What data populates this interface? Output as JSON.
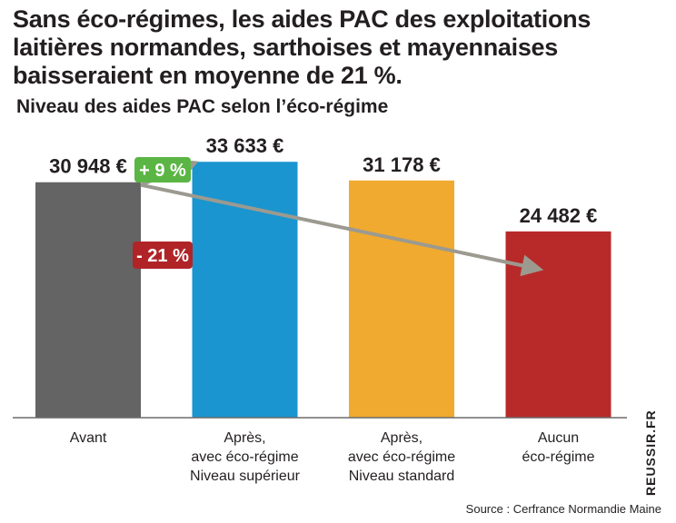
{
  "title_lines": [
    "Sans éco-régimes, les aides PAC des exploitations",
    "laitières normandes, sarthoises et mayennaises",
    "baisseraient en moyenne de 21 %."
  ],
  "source": "Source : Cerfrance Normandie Maine",
  "credit": "REUSSIR.FR",
  "chart_data": {
    "type": "bar",
    "title": "Niveau des aides PAC selon l’éco-régime",
    "categories": [
      [
        "Avant"
      ],
      [
        "Après,",
        "avec éco-régime",
        "Niveau supérieur"
      ],
      [
        "Après,",
        "avec éco-régime",
        "Niveau standard"
      ],
      [
        "Aucun",
        "éco-régime"
      ]
    ],
    "values": [
      30948,
      33633,
      31178,
      24482
    ],
    "value_labels": [
      "30 948 €",
      "33 633 €",
      "31 178 €",
      "24 482 €"
    ],
    "colors": [
      "#646464",
      "#1a95cf",
      "#f0aa2f",
      "#b82a2a"
    ],
    "ylim": [
      0,
      37000
    ],
    "grid": false,
    "annotations": [
      {
        "text": "+ 9 %",
        "from": 0,
        "to": 1,
        "color": "#5bb544"
      },
      {
        "text": "- 21 %",
        "from": 0,
        "to": 3,
        "color": "#b02428"
      }
    ],
    "arrow_color": "#9c9a90"
  }
}
